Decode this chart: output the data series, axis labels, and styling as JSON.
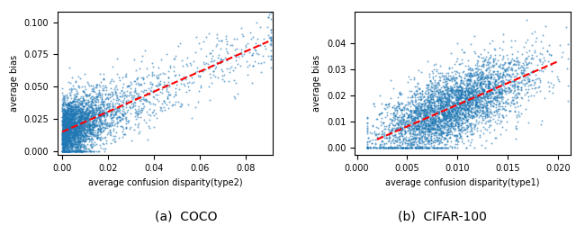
{
  "plot1": {
    "xlabel": "average confusion disparity(type2)",
    "ylabel": "average bias",
    "xlim": [
      -0.002,
      0.092
    ],
    "ylim": [
      -0.003,
      0.108
    ],
    "xticks": [
      0.0,
      0.02,
      0.04,
      0.06,
      0.08
    ],
    "yticks": [
      0.0,
      0.025,
      0.05,
      0.075,
      0.1
    ],
    "scatter_color": "#1f77b4",
    "line_color": "red",
    "line_style": "--",
    "caption": "(a)  COCO",
    "seed": 42,
    "n_points": 3500,
    "line_x0": 0.0,
    "line_y0": 0.015,
    "line_x1": 0.09,
    "line_y1": 0.085
  },
  "plot2": {
    "xlabel": "average confusion disparity(type1)",
    "ylabel": "average bias",
    "xlim": [
      -0.0002,
      0.0212
    ],
    "ylim": [
      -0.003,
      0.052
    ],
    "xticks": [
      0.0,
      0.005,
      0.01,
      0.015,
      0.02
    ],
    "yticks": [
      0.0,
      0.01,
      0.02,
      0.03,
      0.04
    ],
    "scatter_color": "#1f77b4",
    "line_color": "red",
    "line_style": "--",
    "caption": "(b)  CIFAR-100",
    "seed": 7,
    "n_points": 4000,
    "line_x0": 0.002,
    "line_y0": 0.003,
    "line_x1": 0.02,
    "line_y1": 0.033
  },
  "background_color": "#ffffff",
  "marker_size": 2,
  "marker_alpha": 0.6,
  "caption_fontsize": 10
}
